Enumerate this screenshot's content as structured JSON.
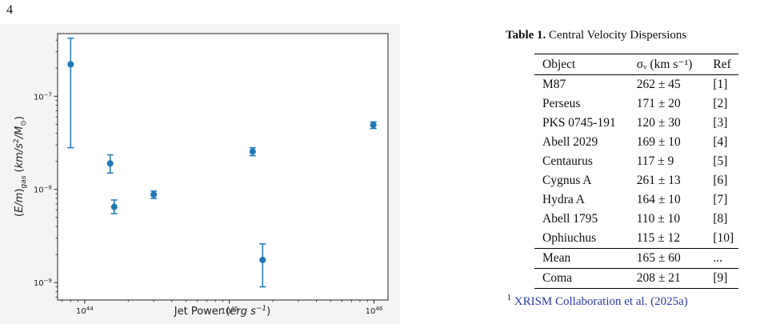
{
  "page_number": "4",
  "chart_data": {
    "type": "scatter",
    "xlabel": "Jet Power (erg s⁻¹)",
    "ylabel": "(E/m)gas (km/s²/M⊙)",
    "xscale": "log",
    "yscale": "log",
    "xlim": [
      6.5e+43,
      1.25e+46
    ],
    "ylim": [
      6.5e-10,
      4.7e-07
    ],
    "xticks": [
      1e+44,
      1e+45,
      1e+46
    ],
    "xtick_labels": [
      "10",
      "10",
      "10"
    ],
    "xtick_exponents": [
      "44",
      "45",
      "46"
    ],
    "yticks": [
      1e-09,
      1e-08,
      1e-07
    ],
    "ytick_labels": [
      "10",
      "10",
      "10"
    ],
    "ytick_exponents": [
      "−9",
      "−8",
      "−7"
    ],
    "grid": false,
    "color": "#1f77b4",
    "points": [
      {
        "x": 8e+43,
        "y": 2.2e-07,
        "ylow": 2.8e-08,
        "yhigh": 4.2e-07
      },
      {
        "x": 1.5e+44,
        "y": 1.9e-08,
        "ylow": 1.5e-08,
        "yhigh": 2.35e-08
      },
      {
        "x": 1.6e+44,
        "y": 6.5e-09,
        "ylow": 5.5e-09,
        "yhigh": 7.7e-09
      },
      {
        "x": 3e+44,
        "y": 8.8e-09,
        "ylow": 8e-09,
        "yhigh": 9.6e-09
      },
      {
        "x": 1.45e+45,
        "y": 2.55e-08,
        "ylow": 2.3e-08,
        "yhigh": 2.8e-08
      },
      {
        "x": 1.7e+45,
        "y": 1.75e-09,
        "ylow": 9e-10,
        "yhigh": 2.6e-09
      },
      {
        "x": 9.9e+45,
        "y": 4.9e-08,
        "ylow": 4.5e-08,
        "yhigh": 5.3e-08
      }
    ]
  },
  "table": {
    "caption_label": "Table 1.",
    "caption_text": "Central Velocity Dispersions",
    "headers": {
      "object": "Object",
      "sigma": "σᵥ (km s⁻¹)",
      "ref": "Ref"
    },
    "rows": [
      {
        "object": "M87",
        "sigma": "262 ± 45",
        "ref": "[1]"
      },
      {
        "object": "Perseus",
        "sigma": "171 ± 20",
        "ref": "[2]"
      },
      {
        "object": "PKS 0745-191",
        "sigma": "120 ± 30",
        "ref": "[3]"
      },
      {
        "object": "Abell 2029",
        "sigma": "169 ± 10",
        "ref": "[4]"
      },
      {
        "object": "Centaurus",
        "sigma": "117 ± 9",
        "ref": "[5]"
      },
      {
        "object": "Cygnus A",
        "sigma": "261 ± 13",
        "ref": "[6]"
      },
      {
        "object": "Hydra A",
        "sigma": "164 ± 10",
        "ref": "[7]"
      },
      {
        "object": "Abell 1795",
        "sigma": "110 ± 10",
        "ref": "[8]"
      },
      {
        "object": "Ophiuchus",
        "sigma": "115 ± 12",
        "ref": "[10]"
      }
    ],
    "mean_row": {
      "object": "Mean",
      "sigma": "165 ± 60",
      "ref": "..."
    },
    "coma_row": {
      "object": "Coma",
      "sigma": "208 ± 21",
      "ref": "[9]"
    }
  },
  "footnote": {
    "marker": "1",
    "text": "XRISM Collaboration et al. (2025a)"
  }
}
